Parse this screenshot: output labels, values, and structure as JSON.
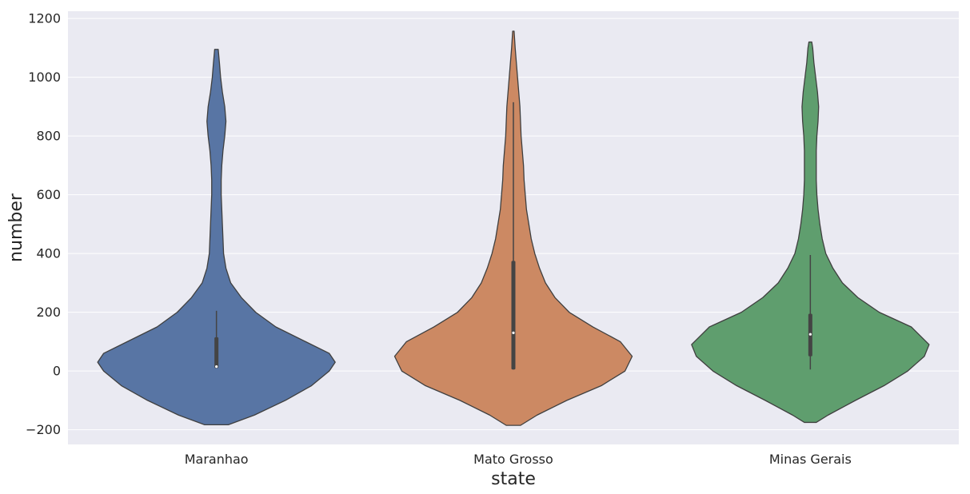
{
  "chart_data": {
    "type": "violin",
    "xlabel": "state",
    "ylabel": "number",
    "ylim": [
      -250,
      1225
    ],
    "yticks": [
      -200,
      0,
      200,
      400,
      600,
      800,
      1000,
      1200
    ],
    "ytick_labels": [
      "−200",
      "0",
      "200",
      "400",
      "600",
      "800",
      "1000",
      "1200"
    ],
    "grid": true,
    "colors": {
      "background": "#eaeaf2",
      "grid": "#ffffff",
      "outline": "#3f3f3f",
      "box": "#444444"
    },
    "categories": [
      "Maranhao",
      "Mato Grosso",
      "Minas Gerais"
    ],
    "series": [
      {
        "category": "Maranhao",
        "color": "#5875a4",
        "min": 10,
        "q1": 10,
        "median": 15,
        "q3": 115,
        "max": 205,
        "range": [
          -183,
          1095
        ],
        "density": [
          [
            -183,
            0.1
          ],
          [
            -150,
            0.32
          ],
          [
            -100,
            0.58
          ],
          [
            -50,
            0.8
          ],
          [
            0,
            0.95
          ],
          [
            30,
            1.0
          ],
          [
            60,
            0.95
          ],
          [
            100,
            0.75
          ],
          [
            150,
            0.5
          ],
          [
            200,
            0.33
          ],
          [
            250,
            0.21
          ],
          [
            300,
            0.12
          ],
          [
            350,
            0.08
          ],
          [
            400,
            0.06
          ],
          [
            450,
            0.055
          ],
          [
            500,
            0.05
          ],
          [
            550,
            0.045
          ],
          [
            600,
            0.04
          ],
          [
            650,
            0.04
          ],
          [
            700,
            0.045
          ],
          [
            750,
            0.055
          ],
          [
            800,
            0.07
          ],
          [
            850,
            0.08
          ],
          [
            900,
            0.07
          ],
          [
            950,
            0.05
          ],
          [
            1000,
            0.035
          ],
          [
            1050,
            0.025
          ],
          [
            1095,
            0.015
          ]
        ]
      },
      {
        "category": "Mato Grosso",
        "color": "#cc8963",
        "min": 5,
        "q1": 5,
        "median": 130,
        "q3": 375,
        "max": 915,
        "range": [
          -185,
          1157
        ],
        "density": [
          [
            -185,
            0.06
          ],
          [
            -150,
            0.2
          ],
          [
            -100,
            0.45
          ],
          [
            -50,
            0.74
          ],
          [
            0,
            0.94
          ],
          [
            50,
            1.0
          ],
          [
            100,
            0.9
          ],
          [
            150,
            0.67
          ],
          [
            200,
            0.47
          ],
          [
            250,
            0.35
          ],
          [
            300,
            0.27
          ],
          [
            350,
            0.22
          ],
          [
            400,
            0.18
          ],
          [
            450,
            0.15
          ],
          [
            500,
            0.13
          ],
          [
            550,
            0.11
          ],
          [
            600,
            0.1
          ],
          [
            650,
            0.09
          ],
          [
            700,
            0.085
          ],
          [
            750,
            0.075
          ],
          [
            800,
            0.065
          ],
          [
            850,
            0.06
          ],
          [
            900,
            0.055
          ],
          [
            950,
            0.045
          ],
          [
            1000,
            0.035
          ],
          [
            1050,
            0.025
          ],
          [
            1100,
            0.015
          ],
          [
            1157,
            0.006
          ]
        ]
      },
      {
        "category": "Minas Gerais",
        "color": "#5f9e6e",
        "min": 5,
        "q1": 50,
        "median": 125,
        "q3": 195,
        "max": 395,
        "range": [
          -175,
          1120
        ],
        "density": [
          [
            -175,
            0.05
          ],
          [
            -150,
            0.15
          ],
          [
            -100,
            0.38
          ],
          [
            -50,
            0.62
          ],
          [
            0,
            0.82
          ],
          [
            50,
            0.96
          ],
          [
            90,
            1.0
          ],
          [
            150,
            0.85
          ],
          [
            200,
            0.58
          ],
          [
            250,
            0.4
          ],
          [
            300,
            0.27
          ],
          [
            350,
            0.19
          ],
          [
            400,
            0.13
          ],
          [
            450,
            0.1
          ],
          [
            500,
            0.08
          ],
          [
            550,
            0.065
          ],
          [
            600,
            0.055
          ],
          [
            650,
            0.05
          ],
          [
            700,
            0.05
          ],
          [
            750,
            0.05
          ],
          [
            800,
            0.055
          ],
          [
            850,
            0.065
          ],
          [
            900,
            0.07
          ],
          [
            950,
            0.06
          ],
          [
            1000,
            0.045
          ],
          [
            1050,
            0.03
          ],
          [
            1100,
            0.02
          ],
          [
            1120,
            0.012
          ]
        ]
      }
    ]
  }
}
